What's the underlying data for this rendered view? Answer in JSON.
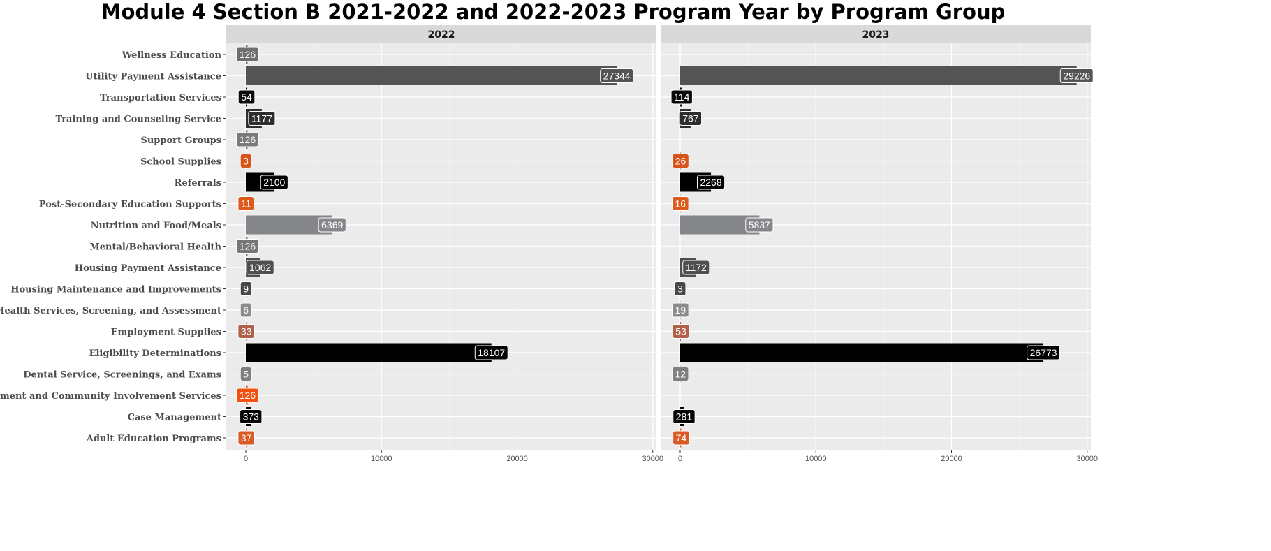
{
  "chart_data": {
    "type": "bar",
    "orientation": "horizontal",
    "title": "Module 4 Section B 2021-2022 and 2022-2023 Program Year by Program Group",
    "xlim": [
      0,
      30000
    ],
    "x_ticks": [
      0,
      10000,
      20000,
      30000
    ],
    "grid": true,
    "legend": "none",
    "categories": [
      "Wellness Education",
      "Utility Payment Assistance",
      "Transportation Services",
      "Training and Counseling Service",
      "Support Groups",
      "School Supplies",
      "Referrals",
      "Post-Secondary Education Supports",
      "Nutrition and Food/Meals",
      "Mental/Behavioral Health",
      "Housing Payment Assistance",
      "Housing Maintenance and Improvements",
      "Health Services, Screening, and Assessment",
      "Employment Supplies",
      "Eligibility Determinations",
      "Dental Service, Screenings, and Exams",
      "Civic Engagement and Community Involvement Services",
      "Case Management",
      "Adult Education Programs"
    ],
    "colors": [
      "#6e6e6e",
      "#545454",
      "#0a0a0a",
      "#2e2e2e",
      "#7a7a7a",
      "#d9541a",
      "#000000",
      "#dd5a1c",
      "#85868a",
      "#767676",
      "#4f4f4f",
      "#474747",
      "#8c8c8c",
      "#b0614a",
      "#000000",
      "#7f7f7f",
      "#f05010",
      "#050505",
      "#d95a24"
    ],
    "panels": [
      {
        "name": "2022",
        "values": [
          126,
          27344,
          54,
          1177,
          126,
          3,
          2100,
          11,
          6369,
          126,
          1062,
          9,
          6,
          33,
          18107,
          5,
          126,
          373,
          37
        ]
      },
      {
        "name": "2023",
        "values": [
          0,
          29226,
          114,
          767,
          0,
          26,
          2268,
          16,
          5837,
          0,
          1172,
          3,
          19,
          53,
          26773,
          12,
          0,
          281,
          74
        ]
      }
    ],
    "data_labels": [
      [
        "126",
        "27344",
        "54",
        "1177",
        "126",
        "3",
        "2100",
        "11",
        "6369",
        "126",
        "1062",
        "9",
        "6",
        "33",
        "18107",
        "5",
        "126",
        "373",
        "37"
      ],
      [
        "",
        "29226",
        "114",
        "767",
        "",
        "26",
        "2268",
        "16",
        "5837",
        "",
        "1172",
        "3",
        "19",
        "53",
        "26773",
        "12",
        "",
        "281",
        "74"
      ]
    ]
  }
}
